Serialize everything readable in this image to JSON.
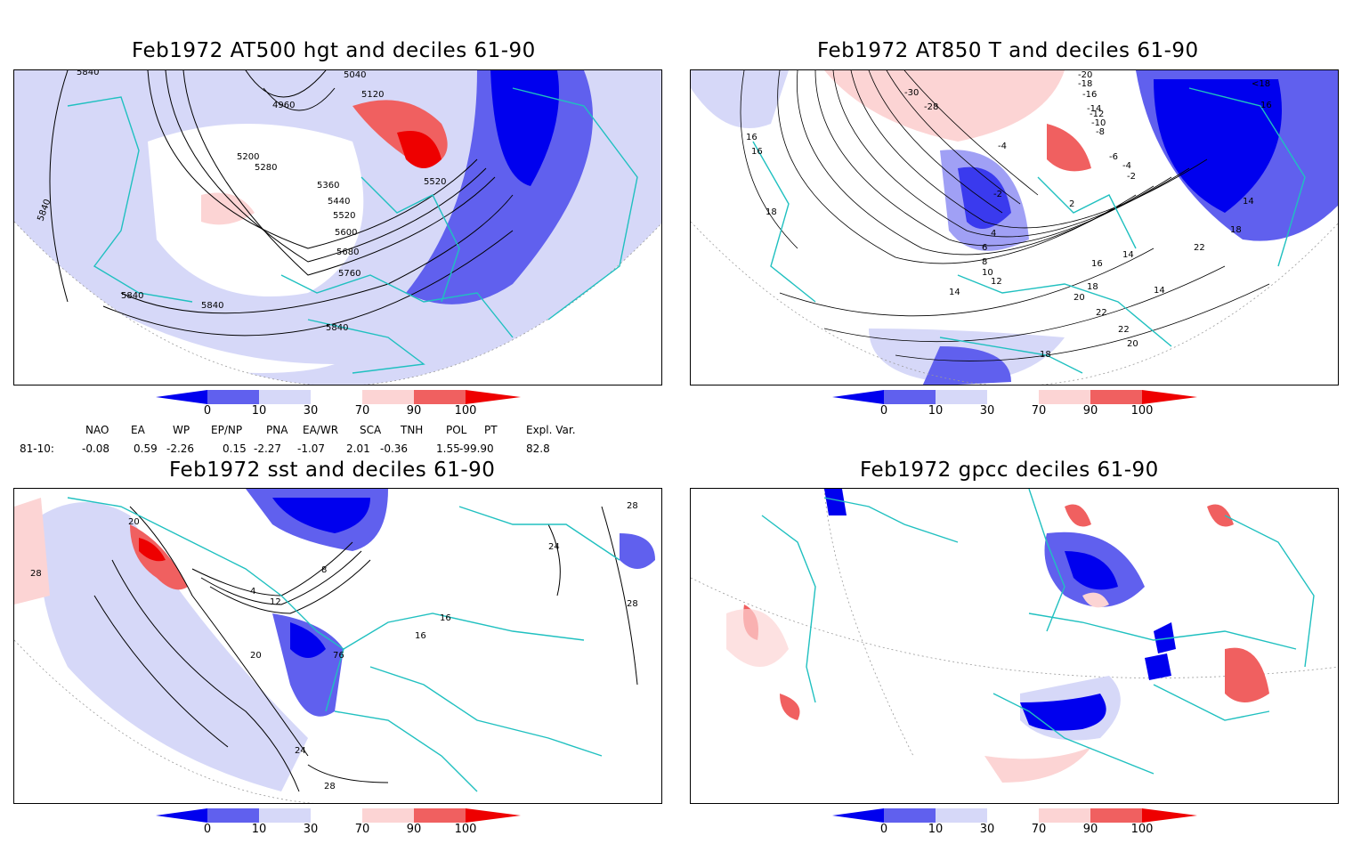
{
  "panels": [
    {
      "id": "p1",
      "title": "Feb1972 AT500 hgt and deciles 61-90",
      "contour_labels": [
        "5840",
        "5040",
        "4960",
        "5120",
        "5200",
        "5280",
        "5360",
        "5440",
        "5520",
        "5600",
        "5680",
        "5760",
        "5840",
        "5840",
        "5840",
        "5520",
        "5840"
      ]
    },
    {
      "id": "p2",
      "title": "Feb1972 AT850 T and deciles 61-90",
      "contour_labels": [
        "-20",
        "-18",
        "-16",
        "-14",
        "-12",
        "-10",
        "-8",
        "-6",
        "-4",
        "-2",
        "<18",
        "16",
        "16",
        "16",
        "18",
        "14",
        "18",
        "-30",
        "-28",
        "-4",
        "-2",
        "2",
        "4",
        "6",
        "8",
        "10",
        "12",
        "14",
        "16",
        "18",
        "20",
        "22",
        "22",
        "20",
        "18",
        "14",
        "22",
        "14"
      ]
    },
    {
      "id": "p3",
      "title": "Feb1972 sst and deciles 61-90",
      "contour_labels": [
        "20",
        "28",
        "4",
        "8",
        "12",
        "20",
        "24",
        "28",
        "16",
        "16",
        "76",
        "24",
        "28",
        "28"
      ]
    },
    {
      "id": "p4",
      "title": "Feb1972 gpcc deciles 61-90",
      "contour_labels": []
    }
  ],
  "colorbar": {
    "ticks": [
      "0",
      "10",
      "30",
      "70",
      "90",
      "100"
    ],
    "colors": [
      "#0000ee",
      "#6060ee",
      "#d6d8f8",
      "#ffffff",
      "#fcd4d4",
      "#f06060",
      "#ee0000"
    ]
  },
  "indices": {
    "row_label": "81-10:",
    "headers": [
      "NAO",
      "EA",
      "WP",
      "EP/NP",
      "PNA",
      "EA/WR",
      "SCA",
      "TNH",
      "POL",
      "PT",
      "Expl. Var."
    ],
    "values": [
      "-0.08",
      "0.59",
      "-2.26",
      "0.15",
      "-2.27",
      "-1.07",
      "2.01",
      "-0.36",
      "1.55",
      "-99.90",
      "82.8"
    ]
  },
  "colors": {
    "coastline": "#20c0c0",
    "contour": "#000000",
    "grid": "#9a9a9a"
  }
}
